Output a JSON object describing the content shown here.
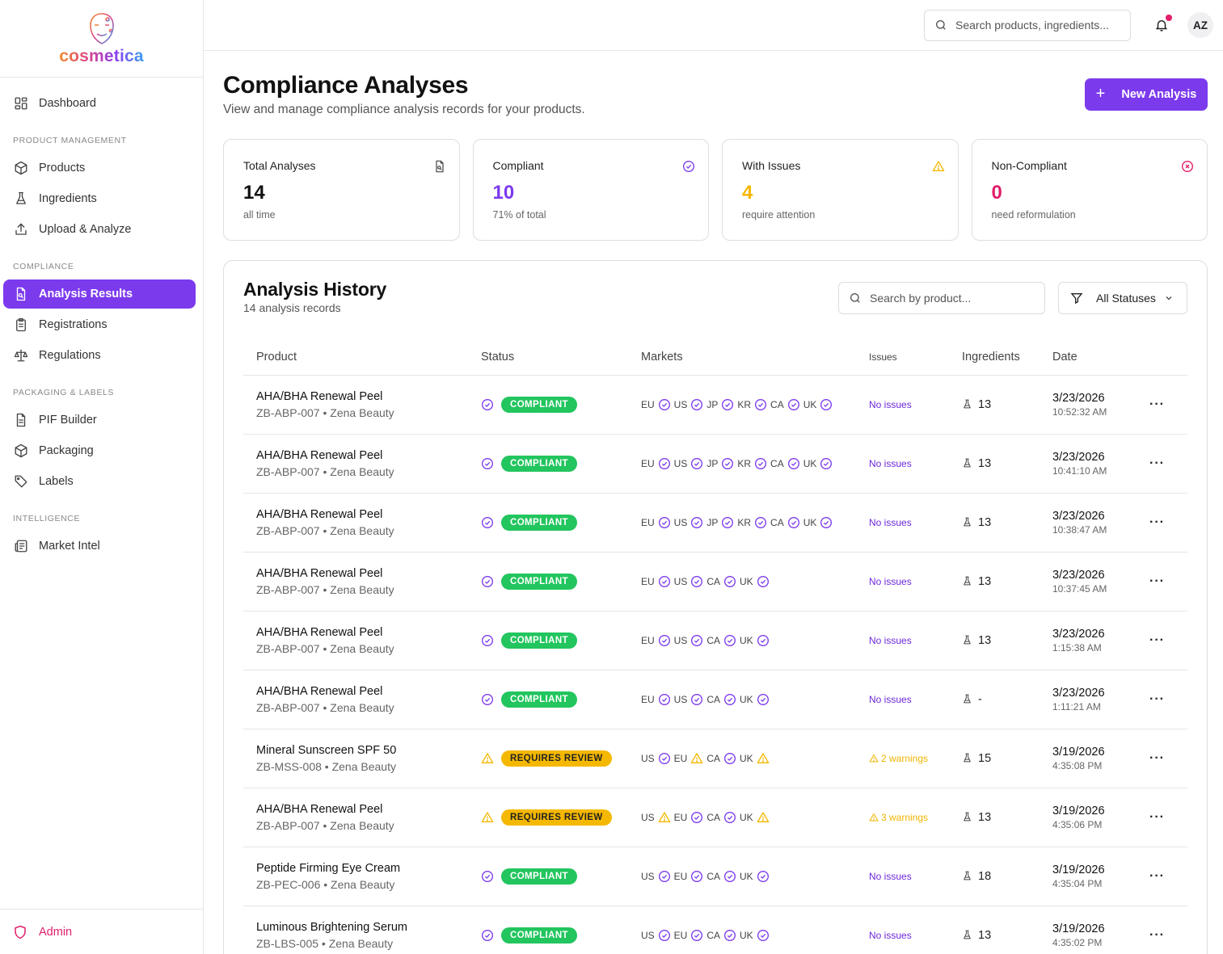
{
  "brand": {
    "name": "cosmetica"
  },
  "sidebar": {
    "items_top": [
      {
        "label": "Dashboard",
        "icon": "dashboard-icon"
      }
    ],
    "sections": [
      {
        "title": "PRODUCT MANAGEMENT",
        "items": [
          {
            "label": "Products",
            "icon": "box-icon"
          },
          {
            "label": "Ingredients",
            "icon": "flask-icon"
          },
          {
            "label": "Upload & Analyze",
            "icon": "upload-icon"
          }
        ]
      },
      {
        "title": "COMPLIANCE",
        "items": [
          {
            "label": "Analysis Results",
            "icon": "file-search-icon",
            "active": true
          },
          {
            "label": "Registrations",
            "icon": "clipboard-icon"
          },
          {
            "label": "Regulations",
            "icon": "scale-icon"
          }
        ]
      },
      {
        "title": "PACKAGING & LABELS",
        "items": [
          {
            "label": "PIF Builder",
            "icon": "document-icon"
          },
          {
            "label": "Packaging",
            "icon": "box-icon"
          },
          {
            "label": "Labels",
            "icon": "tag-icon"
          }
        ]
      },
      {
        "title": "INTELLIGENCE",
        "items": [
          {
            "label": "Market Intel",
            "icon": "newspaper-icon"
          }
        ]
      }
    ],
    "admin_label": "Admin"
  },
  "topbar": {
    "search_placeholder": "Search products, ingredients...",
    "avatar_initials": "AZ"
  },
  "page": {
    "title": "Compliance Analyses",
    "subtitle": "View and manage compliance analysis records for your products.",
    "new_button": "New Analysis"
  },
  "stats": [
    {
      "label": "Total Analyses",
      "value": "14",
      "note": "all time",
      "color": "#111111",
      "icon": "file-search-icon"
    },
    {
      "label": "Compliant",
      "value": "10",
      "note": "71% of total",
      "color": "#7c3aed",
      "icon": "check-circle-icon"
    },
    {
      "label": "With Issues",
      "value": "4",
      "note": "require attention",
      "color": "#f5b800",
      "icon": "warning-icon"
    },
    {
      "label": "Non-Compliant",
      "value": "0",
      "note": "need reformulation",
      "color": "#e11d6a",
      "icon": "x-circle-icon"
    }
  ],
  "history": {
    "title": "Analysis History",
    "subtitle": "14 analysis records",
    "search_placeholder": "Search by product...",
    "filter_label": "All Statuses",
    "columns": [
      "Product",
      "Status",
      "Markets",
      "Issues",
      "Ingredients",
      "Date"
    ],
    "rows": [
      {
        "product": "AHA/BHA Renewal Peel",
        "meta": "ZB-ABP-007 • Zena Beauty",
        "status": "COMPLIANT",
        "status_type": "ok",
        "markets": [
          {
            "code": "EU",
            "s": "ok"
          },
          {
            "code": "US",
            "s": "ok"
          },
          {
            "code": "JP",
            "s": "ok"
          },
          {
            "code": "KR",
            "s": "ok"
          },
          {
            "code": "CA",
            "s": "ok"
          },
          {
            "code": "UK",
            "s": "ok"
          }
        ],
        "issues": "No issues",
        "issue_type": "none",
        "ingredients": "13",
        "date": "3/23/2026",
        "time": "10:52:32 AM"
      },
      {
        "product": "AHA/BHA Renewal Peel",
        "meta": "ZB-ABP-007 • Zena Beauty",
        "status": "COMPLIANT",
        "status_type": "ok",
        "markets": [
          {
            "code": "EU",
            "s": "ok"
          },
          {
            "code": "US",
            "s": "ok"
          },
          {
            "code": "JP",
            "s": "ok"
          },
          {
            "code": "KR",
            "s": "ok"
          },
          {
            "code": "CA",
            "s": "ok"
          },
          {
            "code": "UK",
            "s": "ok"
          }
        ],
        "issues": "No issues",
        "issue_type": "none",
        "ingredients": "13",
        "date": "3/23/2026",
        "time": "10:41:10 AM"
      },
      {
        "product": "AHA/BHA Renewal Peel",
        "meta": "ZB-ABP-007 • Zena Beauty",
        "status": "COMPLIANT",
        "status_type": "ok",
        "markets": [
          {
            "code": "EU",
            "s": "ok"
          },
          {
            "code": "US",
            "s": "ok"
          },
          {
            "code": "JP",
            "s": "ok"
          },
          {
            "code": "KR",
            "s": "ok"
          },
          {
            "code": "CA",
            "s": "ok"
          },
          {
            "code": "UK",
            "s": "ok"
          }
        ],
        "issues": "No issues",
        "issue_type": "none",
        "ingredients": "13",
        "date": "3/23/2026",
        "time": "10:38:47 AM"
      },
      {
        "product": "AHA/BHA Renewal Peel",
        "meta": "ZB-ABP-007 • Zena Beauty",
        "status": "COMPLIANT",
        "status_type": "ok",
        "markets": [
          {
            "code": "EU",
            "s": "ok"
          },
          {
            "code": "US",
            "s": "ok"
          },
          {
            "code": "CA",
            "s": "ok"
          },
          {
            "code": "UK",
            "s": "ok"
          }
        ],
        "issues": "No issues",
        "issue_type": "none",
        "ingredients": "13",
        "date": "3/23/2026",
        "time": "10:37:45 AM"
      },
      {
        "product": "AHA/BHA Renewal Peel",
        "meta": "ZB-ABP-007 • Zena Beauty",
        "status": "COMPLIANT",
        "status_type": "ok",
        "markets": [
          {
            "code": "EU",
            "s": "ok"
          },
          {
            "code": "US",
            "s": "ok"
          },
          {
            "code": "CA",
            "s": "ok"
          },
          {
            "code": "UK",
            "s": "ok"
          }
        ],
        "issues": "No issues",
        "issue_type": "none",
        "ingredients": "13",
        "date": "3/23/2026",
        "time": "1:15:38 AM"
      },
      {
        "product": "AHA/BHA Renewal Peel",
        "meta": "ZB-ABP-007 • Zena Beauty",
        "status": "COMPLIANT",
        "status_type": "ok",
        "markets": [
          {
            "code": "EU",
            "s": "ok"
          },
          {
            "code": "US",
            "s": "ok"
          },
          {
            "code": "CA",
            "s": "ok"
          },
          {
            "code": "UK",
            "s": "ok"
          }
        ],
        "issues": "No issues",
        "issue_type": "none",
        "ingredients": "-",
        "date": "3/23/2026",
        "time": "1:11:21 AM"
      },
      {
        "product": "Mineral Sunscreen SPF 50",
        "meta": "ZB-MSS-008 • Zena Beauty",
        "status": "REQUIRES REVIEW",
        "status_type": "warn",
        "markets": [
          {
            "code": "US",
            "s": "ok"
          },
          {
            "code": "EU",
            "s": "warn"
          },
          {
            "code": "CA",
            "s": "ok"
          },
          {
            "code": "UK",
            "s": "warn"
          }
        ],
        "issues": "2 warnings",
        "issue_type": "warn",
        "ingredients": "15",
        "date": "3/19/2026",
        "time": "4:35:08 PM"
      },
      {
        "product": "AHA/BHA Renewal Peel",
        "meta": "ZB-ABP-007 • Zena Beauty",
        "status": "REQUIRES REVIEW",
        "status_type": "warn",
        "markets": [
          {
            "code": "US",
            "s": "warn"
          },
          {
            "code": "EU",
            "s": "ok"
          },
          {
            "code": "CA",
            "s": "ok"
          },
          {
            "code": "UK",
            "s": "warn"
          }
        ],
        "issues": "3 warnings",
        "issue_type": "warn",
        "ingredients": "13",
        "date": "3/19/2026",
        "time": "4:35:06 PM"
      },
      {
        "product": "Peptide Firming Eye Cream",
        "meta": "ZB-PEC-006 • Zena Beauty",
        "status": "COMPLIANT",
        "status_type": "ok",
        "markets": [
          {
            "code": "US",
            "s": "ok"
          },
          {
            "code": "EU",
            "s": "ok"
          },
          {
            "code": "CA",
            "s": "ok"
          },
          {
            "code": "UK",
            "s": "ok"
          }
        ],
        "issues": "No issues",
        "issue_type": "none",
        "ingredients": "18",
        "date": "3/19/2026",
        "time": "4:35:04 PM"
      },
      {
        "product": "Luminous Brightening Serum",
        "meta": "ZB-LBS-005 • Zena Beauty",
        "status": "COMPLIANT",
        "status_type": "ok",
        "markets": [
          {
            "code": "US",
            "s": "ok"
          },
          {
            "code": "EU",
            "s": "ok"
          },
          {
            "code": "CA",
            "s": "ok"
          },
          {
            "code": "UK",
            "s": "ok"
          }
        ],
        "issues": "No issues",
        "issue_type": "none",
        "ingredients": "13",
        "date": "3/19/2026",
        "time": "4:35:02 PM"
      }
    ]
  },
  "colors": {
    "accent": "#7c3aed",
    "compliant": "#22c55e",
    "warning": "#f5b800",
    "danger": "#e11d6a"
  }
}
